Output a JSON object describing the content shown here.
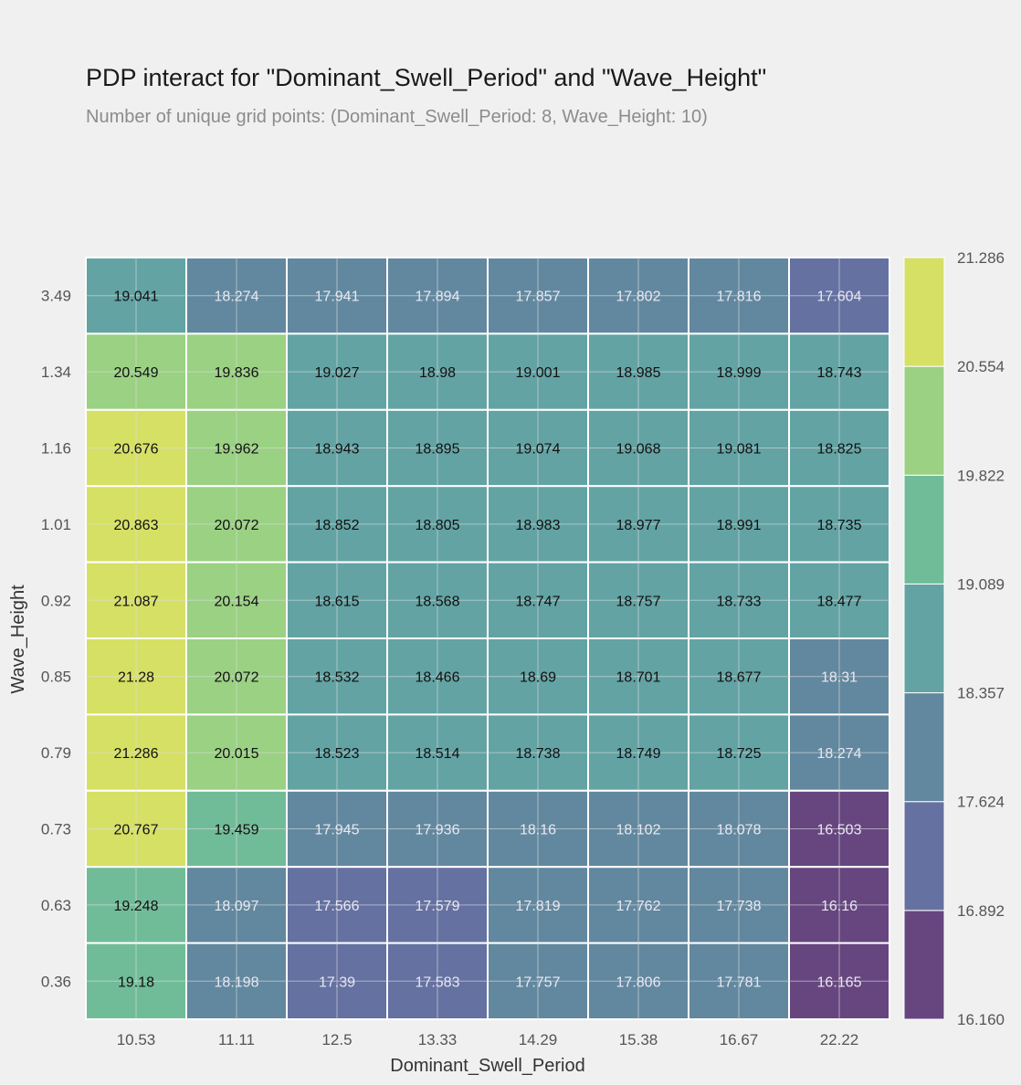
{
  "chart_data": {
    "type": "heatmap",
    "title": "PDP interact for \"Dominant_Swell_Period\" and \"Wave_Height\"",
    "subtitle": "Number of unique grid points: (Dominant_Swell_Period: 8, Wave_Height: 10)",
    "xlabel": "Dominant_Swell_Period",
    "ylabel": "Wave_Height",
    "x": [
      "10.53",
      "11.11",
      "12.5",
      "13.33",
      "14.29",
      "15.38",
      "16.67",
      "22.22"
    ],
    "y": [
      "3.49",
      "1.34",
      "1.16",
      "1.01",
      "0.92",
      "0.85",
      "0.79",
      "0.73",
      "0.63",
      "0.36"
    ],
    "values": [
      [
        19.041,
        18.274,
        17.941,
        17.894,
        17.857,
        17.802,
        17.816,
        17.604
      ],
      [
        20.549,
        19.836,
        19.027,
        18.98,
        19.001,
        18.985,
        18.999,
        18.743
      ],
      [
        20.676,
        19.962,
        18.943,
        18.895,
        19.074,
        19.068,
        19.081,
        18.825
      ],
      [
        20.863,
        20.072,
        18.852,
        18.805,
        18.983,
        18.977,
        18.991,
        18.735
      ],
      [
        21.087,
        20.154,
        18.615,
        18.568,
        18.747,
        18.757,
        18.733,
        18.477
      ],
      [
        21.28,
        20.072,
        18.532,
        18.466,
        18.69,
        18.701,
        18.677,
        18.31
      ],
      [
        21.286,
        20.015,
        18.523,
        18.514,
        18.738,
        18.749,
        18.725,
        18.274
      ],
      [
        20.767,
        19.459,
        17.945,
        17.936,
        18.16,
        18.102,
        18.078,
        16.503
      ],
      [
        19.248,
        18.097,
        17.566,
        17.579,
        17.819,
        17.762,
        17.738,
        16.16
      ],
      [
        19.18,
        18.198,
        17.39,
        17.583,
        17.757,
        17.806,
        17.781,
        16.165
      ]
    ],
    "colorbar": {
      "levels": [
        "16.160",
        "16.892",
        "17.624",
        "18.357",
        "19.089",
        "19.822",
        "20.554",
        "21.286"
      ],
      "colors": [
        "#67467f",
        "#6571a1",
        "#62889f",
        "#63a3a4",
        "#71bc98",
        "#9ad183",
        "#d6e064"
      ]
    },
    "grid": true,
    "legend": "right"
  }
}
